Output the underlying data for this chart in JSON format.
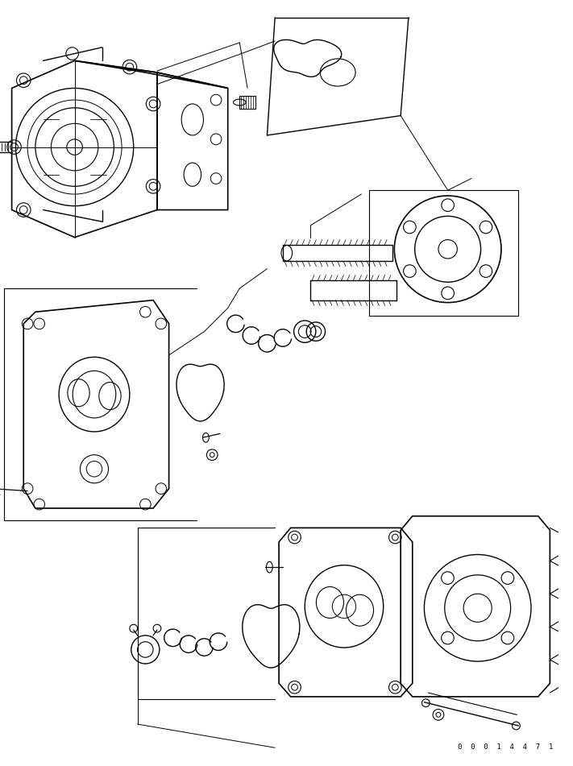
{
  "figsize": [
    7.11,
    9.51
  ],
  "dpi": 100,
  "background_color": "#ffffff",
  "part_number": "0  0  0  1  4  4  7  1",
  "line_color": "#000000",
  "line_width": 0.8
}
